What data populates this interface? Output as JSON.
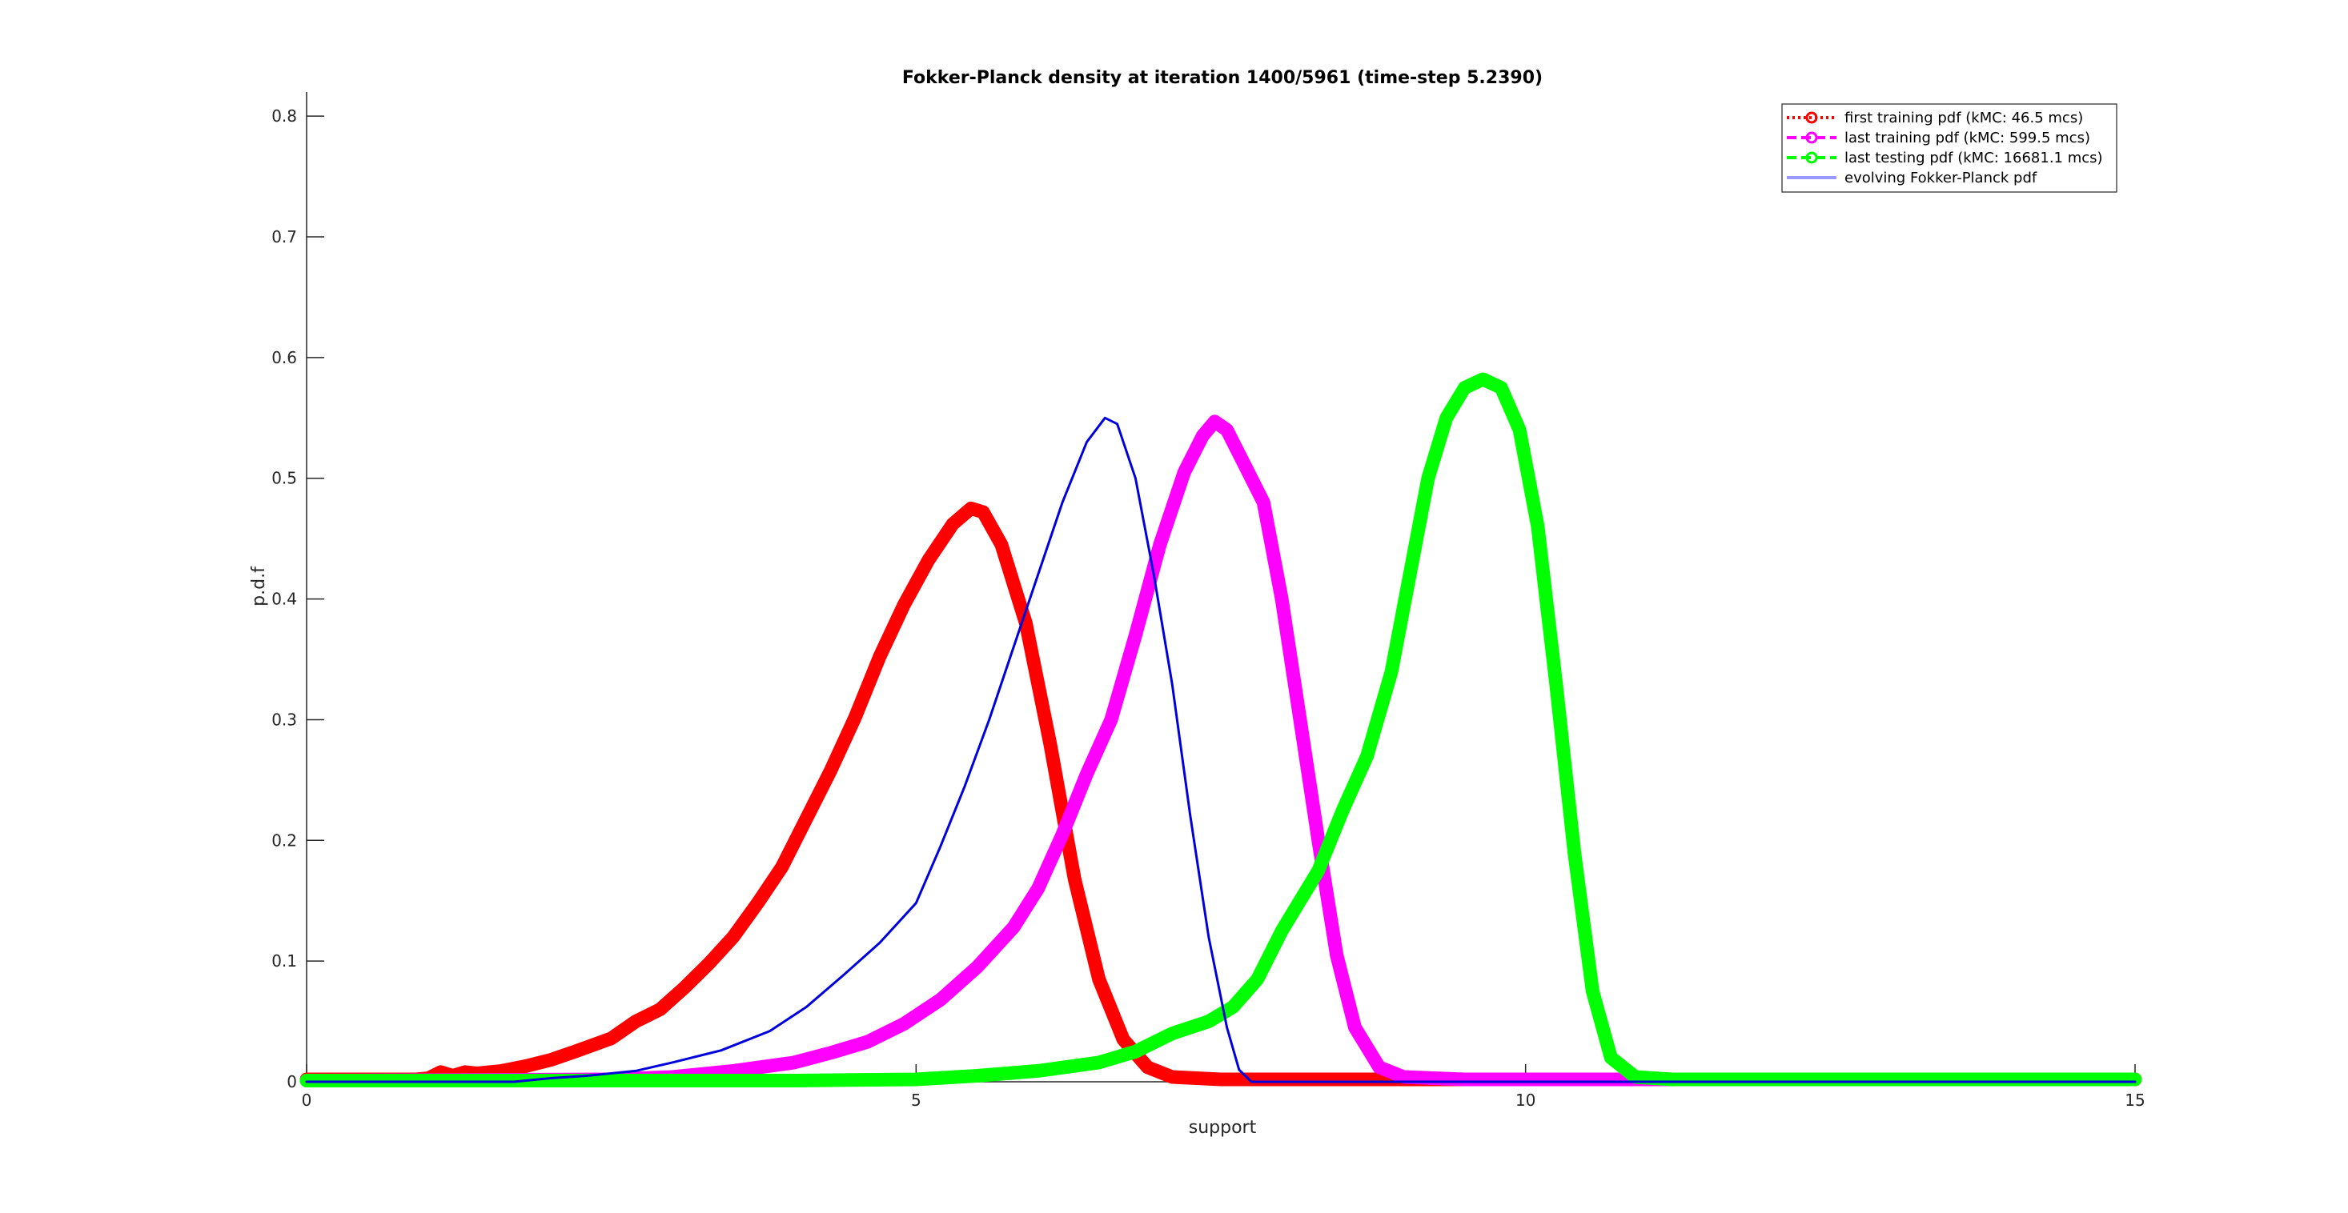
{
  "chart_data": {
    "type": "line",
    "title": "Fokker-Planck density at iteration 1400/5961 (time-step 5.2390)",
    "xlabel": "support",
    "ylabel": "p.d.f",
    "xlim": [
      0,
      15
    ],
    "ylim": [
      0,
      0.82
    ],
    "xticks": [
      0,
      5,
      10,
      15
    ],
    "yticks": [
      0,
      0.1,
      0.2,
      0.3,
      0.4,
      0.5,
      0.6,
      0.7,
      0.8
    ],
    "grid": false,
    "legend_position": "top-right",
    "series": [
      {
        "name": "first training pdf (kMC: 46.5 mcs)",
        "color": "#ff0000",
        "style": "dotted-circle",
        "points": [
          [
            0,
            0.002
          ],
          [
            0.9,
            0.002
          ],
          [
            1.0,
            0.003
          ],
          [
            1.1,
            0.008
          ],
          [
            1.2,
            0.005
          ],
          [
            1.3,
            0.008
          ],
          [
            1.4,
            0.007
          ],
          [
            1.5,
            0.008
          ],
          [
            1.6,
            0.009
          ],
          [
            1.7,
            0.011
          ],
          [
            1.8,
            0.013
          ],
          [
            2.0,
            0.018
          ],
          [
            2.2,
            0.025
          ],
          [
            2.5,
            0.036
          ],
          [
            2.7,
            0.05
          ],
          [
            2.9,
            0.06
          ],
          [
            3.1,
            0.078
          ],
          [
            3.3,
            0.098
          ],
          [
            3.5,
            0.12
          ],
          [
            3.7,
            0.148
          ],
          [
            3.9,
            0.178
          ],
          [
            4.1,
            0.218
          ],
          [
            4.3,
            0.258
          ],
          [
            4.5,
            0.302
          ],
          [
            4.7,
            0.352
          ],
          [
            4.9,
            0.395
          ],
          [
            5.1,
            0.432
          ],
          [
            5.3,
            0.462
          ],
          [
            5.45,
            0.475
          ],
          [
            5.55,
            0.472
          ],
          [
            5.7,
            0.445
          ],
          [
            5.9,
            0.38
          ],
          [
            6.1,
            0.28
          ],
          [
            6.3,
            0.168
          ],
          [
            6.5,
            0.085
          ],
          [
            6.7,
            0.035
          ],
          [
            6.9,
            0.012
          ],
          [
            7.1,
            0.004
          ],
          [
            7.5,
            0.002
          ],
          [
            15,
            0.002
          ]
        ]
      },
      {
        "name": "last training pdf (kMC: 599.5 mcs)",
        "color": "#ff00ff",
        "style": "dashed-circle",
        "points": [
          [
            0,
            0.001
          ],
          [
            2.5,
            0.002
          ],
          [
            3.0,
            0.004
          ],
          [
            3.5,
            0.009
          ],
          [
            4.0,
            0.016
          ],
          [
            4.3,
            0.024
          ],
          [
            4.6,
            0.033
          ],
          [
            4.9,
            0.048
          ],
          [
            5.2,
            0.068
          ],
          [
            5.5,
            0.095
          ],
          [
            5.8,
            0.128
          ],
          [
            6.0,
            0.16
          ],
          [
            6.2,
            0.205
          ],
          [
            6.4,
            0.255
          ],
          [
            6.6,
            0.3
          ],
          [
            6.8,
            0.37
          ],
          [
            7.0,
            0.445
          ],
          [
            7.2,
            0.505
          ],
          [
            7.35,
            0.535
          ],
          [
            7.45,
            0.547
          ],
          [
            7.55,
            0.54
          ],
          [
            7.7,
            0.51
          ],
          [
            7.85,
            0.48
          ],
          [
            8.0,
            0.4
          ],
          [
            8.15,
            0.3
          ],
          [
            8.3,
            0.2
          ],
          [
            8.45,
            0.105
          ],
          [
            8.6,
            0.045
          ],
          [
            8.8,
            0.012
          ],
          [
            9.0,
            0.004
          ],
          [
            9.5,
            0.002
          ],
          [
            15,
            0.002
          ]
        ]
      },
      {
        "name": "last testing pdf (kMC: 16681.1 mcs)",
        "color": "#00ff00",
        "style": "dashed-circle",
        "points": [
          [
            0,
            0.001
          ],
          [
            4.0,
            0.001
          ],
          [
            5.0,
            0.002
          ],
          [
            5.5,
            0.005
          ],
          [
            6.0,
            0.009
          ],
          [
            6.5,
            0.016
          ],
          [
            6.8,
            0.025
          ],
          [
            7.1,
            0.04
          ],
          [
            7.4,
            0.05
          ],
          [
            7.6,
            0.062
          ],
          [
            7.8,
            0.085
          ],
          [
            8.0,
            0.125
          ],
          [
            8.3,
            0.175
          ],
          [
            8.5,
            0.225
          ],
          [
            8.7,
            0.27
          ],
          [
            8.9,
            0.34
          ],
          [
            9.05,
            0.42
          ],
          [
            9.2,
            0.5
          ],
          [
            9.35,
            0.55
          ],
          [
            9.5,
            0.575
          ],
          [
            9.65,
            0.582
          ],
          [
            9.8,
            0.575
          ],
          [
            9.95,
            0.54
          ],
          [
            10.1,
            0.46
          ],
          [
            10.25,
            0.33
          ],
          [
            10.4,
            0.19
          ],
          [
            10.55,
            0.075
          ],
          [
            10.7,
            0.02
          ],
          [
            10.9,
            0.004
          ],
          [
            11.2,
            0.002
          ],
          [
            15,
            0.002
          ]
        ]
      },
      {
        "name": "evolving Fokker-Planck pdf",
        "color": "#0000dd",
        "style": "solid",
        "legend_color": "#9999ff",
        "points": [
          [
            0,
            0.0
          ],
          [
            1.7,
            0.0
          ],
          [
            2.0,
            0.003
          ],
          [
            2.3,
            0.005
          ],
          [
            2.7,
            0.009
          ],
          [
            3.0,
            0.016
          ],
          [
            3.4,
            0.026
          ],
          [
            3.8,
            0.042
          ],
          [
            4.1,
            0.062
          ],
          [
            4.4,
            0.088
          ],
          [
            4.7,
            0.115
          ],
          [
            5.0,
            0.148
          ],
          [
            5.2,
            0.195
          ],
          [
            5.4,
            0.245
          ],
          [
            5.6,
            0.3
          ],
          [
            5.8,
            0.36
          ],
          [
            6.0,
            0.42
          ],
          [
            6.2,
            0.48
          ],
          [
            6.4,
            0.53
          ],
          [
            6.55,
            0.55
          ],
          [
            6.65,
            0.545
          ],
          [
            6.8,
            0.5
          ],
          [
            6.95,
            0.42
          ],
          [
            7.1,
            0.33
          ],
          [
            7.25,
            0.22
          ],
          [
            7.4,
            0.12
          ],
          [
            7.55,
            0.045
          ],
          [
            7.65,
            0.01
          ],
          [
            7.75,
            0.0
          ],
          [
            15,
            0.0
          ]
        ]
      }
    ]
  }
}
